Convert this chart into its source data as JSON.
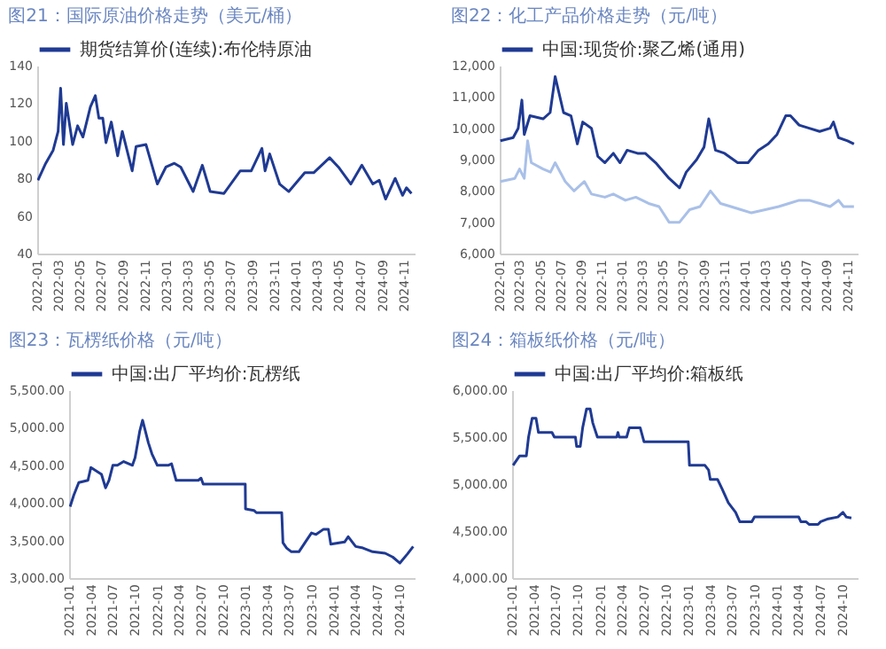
{
  "chart_data": [
    {
      "type": "line",
      "title": "图21：国际原油价格走势（美元/桶）",
      "legend": "top",
      "xlim": [
        "2022-01-01",
        "2024-12-01"
      ],
      "xticks": [
        "2022-01",
        "2022-03",
        "2022-05",
        "2022-07",
        "2022-09",
        "2022-11",
        "2023-01",
        "2023-03",
        "2023-05",
        "2023-07",
        "2023-09",
        "2023-11",
        "2024-01",
        "2024-03",
        "2024-05",
        "2024-07",
        "2024-09",
        "2024-11"
      ],
      "ylim": [
        40,
        140
      ],
      "yticks": [
        40,
        60,
        80,
        100,
        120,
        140
      ],
      "series": [
        {
          "name": "期货结算价(连续):布伦特原油",
          "color": "#1f3a93",
          "x": [
            "2022-01-03",
            "2022-01-25",
            "2022-02-15",
            "2022-03-01",
            "2022-03-08",
            "2022-03-16",
            "2022-03-24",
            "2022-04-11",
            "2022-04-25",
            "2022-05-10",
            "2022-05-31",
            "2022-06-14",
            "2022-06-24",
            "2022-07-05",
            "2022-07-14",
            "2022-07-29",
            "2022-08-16",
            "2022-08-29",
            "2022-09-26",
            "2022-10-07",
            "2022-11-04",
            "2022-12-06",
            "2022-12-30",
            "2023-01-23",
            "2023-02-10",
            "2023-03-17",
            "2023-04-12",
            "2023-05-04",
            "2023-06-12",
            "2023-07-28",
            "2023-08-28",
            "2023-09-27",
            "2023-10-06",
            "2023-10-19",
            "2023-11-16",
            "2023-12-12",
            "2024-01-26",
            "2024-02-20",
            "2024-04-05",
            "2024-04-30",
            "2024-06-04",
            "2024-07-05",
            "2024-08-05",
            "2024-08-23",
            "2024-09-10",
            "2024-10-07",
            "2024-10-28",
            "2024-11-08",
            "2024-11-22"
          ],
          "values": [
            79,
            88,
            95,
            105,
            128,
            98,
            120,
            98,
            108,
            102,
            118,
            124,
            112,
            112,
            99,
            110,
            92,
            105,
            84,
            97,
            98,
            77,
            86,
            88,
            86,
            73,
            87,
            73,
            72,
            84,
            84,
            96,
            84,
            93,
            77,
            73,
            83,
            83,
            91,
            86,
            77,
            87,
            77,
            79,
            69,
            80,
            71,
            75,
            72
          ]
        }
      ]
    },
    {
      "type": "line",
      "title": "图22：化工产品价格走势（元/吨）",
      "legend": "top",
      "xlim": [
        "2022-01-01",
        "2024-12-01"
      ],
      "xticks": [
        "2022-01",
        "2022-03",
        "2022-05",
        "2022-07",
        "2022-09",
        "2022-11",
        "2023-01",
        "2023-03",
        "2023-05",
        "2023-07",
        "2023-09",
        "2023-11",
        "2024-01",
        "2024-03",
        "2024-05",
        "2024-07",
        "2024-09",
        "2024-11"
      ],
      "ylim": [
        6000,
        12000
      ],
      "yticks": [
        {
          "value": 6000,
          "label": "6,000"
        },
        {
          "value": 7000,
          "label": "7,000"
        },
        {
          "value": 8000,
          "label": "8,000"
        },
        {
          "value": 9000,
          "label": "9,000"
        },
        {
          "value": 10000,
          "label": "10,000"
        },
        {
          "value": 11000,
          "label": "11,000"
        },
        {
          "value": 12000,
          "label": "12,000"
        }
      ],
      "series": [
        {
          "name": "中国:现货价:聚乙烯(通用)",
          "color": "#1f3a93",
          "x": [
            "2022-01-03",
            "2022-02-10",
            "2022-02-25",
            "2022-03-08",
            "2022-03-15",
            "2022-04-01",
            "2022-05-10",
            "2022-05-31",
            "2022-06-15",
            "2022-07-10",
            "2022-08-01",
            "2022-08-20",
            "2022-09-05",
            "2022-10-01",
            "2022-10-20",
            "2022-11-10",
            "2022-12-05",
            "2022-12-25",
            "2023-01-15",
            "2023-02-15",
            "2023-03-10",
            "2023-04-10",
            "2023-05-20",
            "2023-06-20",
            "2023-07-10",
            "2023-08-10",
            "2023-09-01",
            "2023-09-15",
            "2023-10-05",
            "2023-11-01",
            "2023-12-10",
            "2024-01-10",
            "2024-02-10",
            "2024-03-10",
            "2024-04-05",
            "2024-05-01",
            "2024-05-15",
            "2024-06-10",
            "2024-07-10",
            "2024-08-10",
            "2024-09-10",
            "2024-09-20",
            "2024-10-05",
            "2024-11-01",
            "2024-11-20"
          ],
          "values": [
            9600,
            9700,
            10000,
            10900,
            9800,
            10400,
            10300,
            10500,
            11650,
            10500,
            10400,
            9500,
            10200,
            10000,
            9100,
            8900,
            9200,
            8900,
            9300,
            9200,
            9200,
            8900,
            8400,
            8100,
            8600,
            9000,
            9400,
            10300,
            9300,
            9200,
            8900,
            8900,
            9300,
            9500,
            9800,
            10400,
            10400,
            10100,
            10000,
            9900,
            10000,
            10200,
            9700,
            9600,
            9500
          ]
        },
        {
          "color": "#a9c0e8",
          "x": [
            "2022-01-03",
            "2022-02-15",
            "2022-03-01",
            "2022-03-15",
            "2022-03-25",
            "2022-04-05",
            "2022-05-10",
            "2022-06-01",
            "2022-06-15",
            "2022-07-15",
            "2022-08-10",
            "2022-09-10",
            "2022-10-01",
            "2022-11-10",
            "2022-12-05",
            "2023-01-10",
            "2023-02-10",
            "2023-03-20",
            "2023-04-20",
            "2023-05-20",
            "2023-06-20",
            "2023-07-20",
            "2023-08-20",
            "2023-09-20",
            "2023-10-20",
            "2023-11-20",
            "2023-12-20",
            "2024-01-20",
            "2024-03-01",
            "2024-04-10",
            "2024-05-10",
            "2024-06-10",
            "2024-07-10",
            "2024-08-10",
            "2024-09-10",
            "2024-10-05",
            "2024-10-20",
            "2024-11-20"
          ],
          "values": [
            8300,
            8400,
            8700,
            8400,
            9600,
            8900,
            8700,
            8600,
            8900,
            8300,
            8000,
            8300,
            7900,
            7800,
            7900,
            7700,
            7800,
            7600,
            7500,
            7000,
            7000,
            7400,
            7500,
            8000,
            7600,
            7500,
            7400,
            7300,
            7400,
            7500,
            7600,
            7700,
            7700,
            7600,
            7500,
            7700,
            7500,
            7500
          ]
        }
      ]
    },
    {
      "type": "line",
      "title": "图23：瓦楞纸价格（元/吨）",
      "legend": "top",
      "xlim": [
        "2021-01-01",
        "2024-12-01"
      ],
      "xticks": [
        "2021-01",
        "2021-04",
        "2021-07",
        "2021-10",
        "2022-01",
        "2022-04",
        "2022-07",
        "2022-10",
        "2023-01",
        "2023-04",
        "2023-07",
        "2023-10",
        "2024-01",
        "2024-04",
        "2024-07",
        "2024-10"
      ],
      "ylim": [
        3000,
        5500
      ],
      "yticks": [
        {
          "value": 3000,
          "label": "3,000.00"
        },
        {
          "value": 3500,
          "label": "3,500.00"
        },
        {
          "value": 4000,
          "label": "4,000.00"
        },
        {
          "value": 4500,
          "label": "4,500.00"
        },
        {
          "value": 5000,
          "label": "5,000.00"
        },
        {
          "value": 5500,
          "label": "5,500.00"
        }
      ],
      "series": [
        {
          "name": "中国:出厂平均价:瓦楞纸",
          "color": "#1f3a93",
          "x": [
            "2021-01-05",
            "2021-01-20",
            "2021-02-10",
            "2021-03-20",
            "2021-04-01",
            "2021-05-15",
            "2021-06-01",
            "2021-06-15",
            "2021-07-01",
            "2021-07-20",
            "2021-08-15",
            "2021-09-20",
            "2021-10-01",
            "2021-10-20",
            "2021-11-01",
            "2021-11-25",
            "2021-12-10",
            "2022-01-01",
            "2022-02-15",
            "2022-03-01",
            "2022-03-20",
            "2022-06-20",
            "2022-07-01",
            "2022-07-10",
            "2022-12-31",
            "2023-01-01",
            "2023-02-05",
            "2023-02-15",
            "2023-05-31",
            "2023-06-05",
            "2023-06-20",
            "2023-07-10",
            "2023-08-10",
            "2023-09-10",
            "2023-10-01",
            "2023-10-20",
            "2023-11-20",
            "2023-12-10",
            "2023-12-20",
            "2024-02-15",
            "2024-03-01",
            "2024-04-01",
            "2024-05-01",
            "2024-06-10",
            "2024-08-01",
            "2024-09-01",
            "2024-10-01",
            "2024-11-01",
            "2024-11-25"
          ],
          "values": [
            3950,
            4100,
            4270,
            4300,
            4470,
            4380,
            4200,
            4300,
            4500,
            4500,
            4550,
            4500,
            4600,
            4950,
            5100,
            4800,
            4650,
            4500,
            4500,
            4520,
            4300,
            4300,
            4330,
            4250,
            4250,
            3920,
            3900,
            3870,
            3870,
            3470,
            3400,
            3350,
            3350,
            3500,
            3600,
            3580,
            3650,
            3650,
            3450,
            3480,
            3550,
            3420,
            3400,
            3350,
            3330,
            3280,
            3200,
            3320,
            3420
          ]
        }
      ]
    },
    {
      "type": "line",
      "title": "图24：箱板纸价格（元/吨）",
      "legend": "top",
      "xlim": [
        "2021-01-01",
        "2024-12-01"
      ],
      "xticks": [
        "2021-01",
        "2021-04",
        "2021-07",
        "2021-10",
        "2022-01",
        "2022-04",
        "2022-07",
        "2022-10",
        "2023-01",
        "2023-04",
        "2023-07",
        "2023-10",
        "2024-01",
        "2024-04",
        "2024-07",
        "2024-10"
      ],
      "ylim": [
        4000,
        6000
      ],
      "yticks": [
        {
          "value": 4000,
          "label": "4,000.00"
        },
        {
          "value": 4500,
          "label": "4,500.00"
        },
        {
          "value": 5000,
          "label": "5,000.00"
        },
        {
          "value": 5500,
          "label": "5,500.00"
        },
        {
          "value": 6000,
          "label": "6,000.00"
        }
      ],
      "series": [
        {
          "name": "中国:出厂平均价:箱板纸",
          "color": "#1f3a93",
          "x": [
            "2021-01-05",
            "2021-02-01",
            "2021-03-01",
            "2021-03-10",
            "2021-03-25",
            "2021-04-10",
            "2021-04-20",
            "2021-06-15",
            "2021-06-25",
            "2021-09-20",
            "2021-09-25",
            "2021-10-10",
            "2021-10-20",
            "2021-11-05",
            "2021-11-20",
            "2021-12-01",
            "2021-12-20",
            "2022-03-10",
            "2022-03-15",
            "2022-03-20",
            "2022-04-20",
            "2022-05-01",
            "2022-06-15",
            "2022-07-01",
            "2022-12-31",
            "2023-01-05",
            "2023-03-10",
            "2023-03-25",
            "2023-04-01",
            "2023-05-01",
            "2023-05-20",
            "2023-06-15",
            "2023-07-15",
            "2023-08-01",
            "2023-09-20",
            "2023-10-01",
            "2024-04-01",
            "2024-04-10",
            "2024-05-01",
            "2024-05-15",
            "2024-06-20",
            "2024-07-01",
            "2024-08-01",
            "2024-09-10",
            "2024-10-01",
            "2024-10-15",
            "2024-11-05"
          ],
          "values": [
            5200,
            5300,
            5300,
            5500,
            5700,
            5700,
            5550,
            5550,
            5500,
            5500,
            5400,
            5400,
            5600,
            5800,
            5800,
            5650,
            5500,
            5500,
            5550,
            5500,
            5500,
            5600,
            5600,
            5450,
            5450,
            5200,
            5200,
            5150,
            5050,
            5050,
            4950,
            4800,
            4700,
            4600,
            4600,
            4650,
            4650,
            4600,
            4600,
            4570,
            4570,
            4600,
            4630,
            4650,
            4700,
            4650,
            4640
          ]
        }
      ]
    }
  ]
}
